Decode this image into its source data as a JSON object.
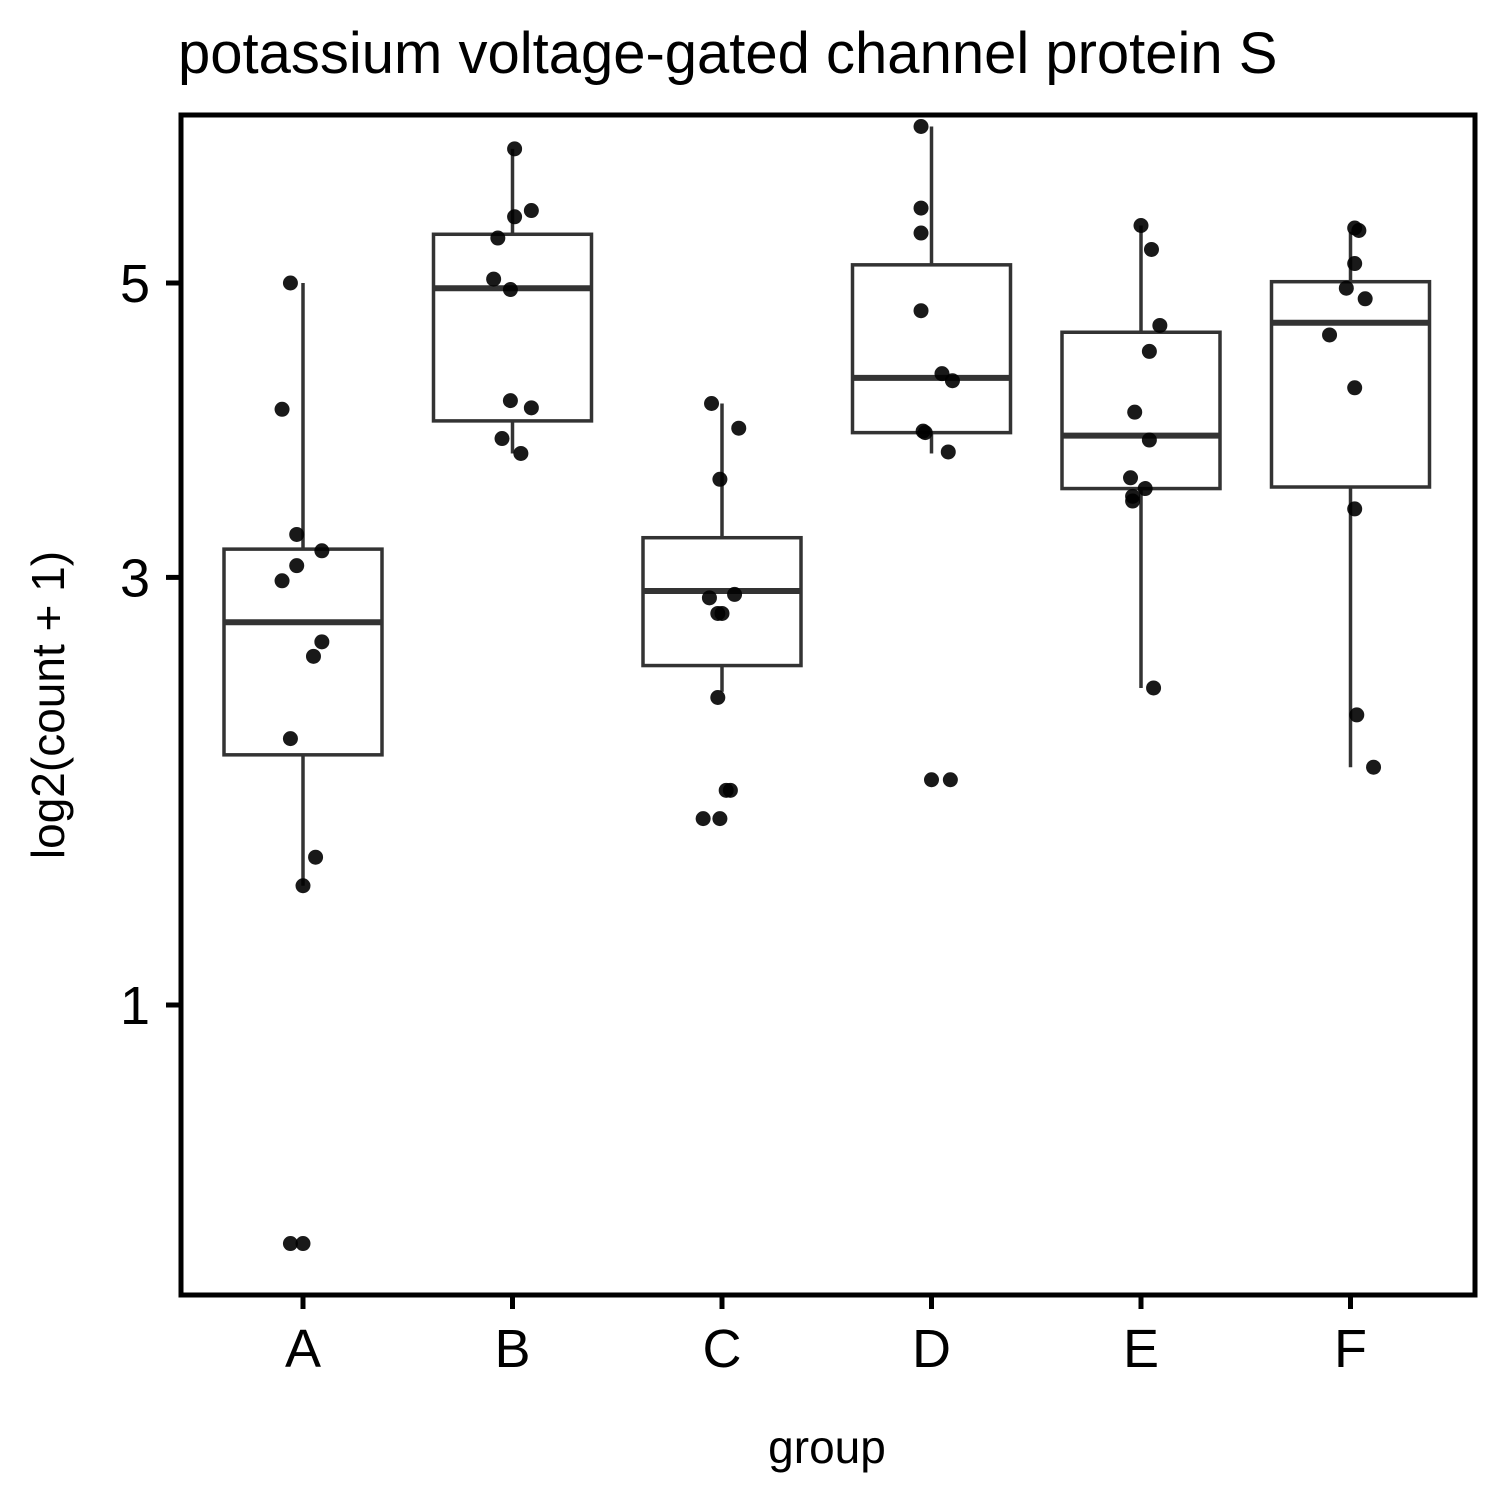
{
  "chart_data": {
    "type": "boxplot",
    "title": "potassium voltage-gated channel protein S",
    "xlabel": "group",
    "ylabel": "log2(count + 1)",
    "y_scale": "sqrt",
    "y_ticks": [
      1,
      3,
      5
    ],
    "ylim": [
      0.13,
      7.05
    ],
    "grid": false,
    "legend": "none",
    "colors": {
      "box_stroke": "#333333",
      "point": "#000000",
      "frame": "#000000"
    },
    "categories": [
      "A",
      "B",
      "C",
      "D",
      "E",
      "F"
    ],
    "boxes": [
      {
        "group": "A",
        "whisker_low": 1.45,
        "q1": 2.04,
        "median": 2.74,
        "q3": 3.17,
        "whisker_high": 5.0
      },
      {
        "group": "B",
        "whisker_low": 3.78,
        "q1": 4.0,
        "median": 4.96,
        "q3": 5.38,
        "whisker_high": 6.08
      },
      {
        "group": "C",
        "whisker_low": 2.36,
        "q1": 2.5,
        "median": 2.92,
        "q3": 3.24,
        "whisker_high": 4.12
      },
      {
        "group": "D",
        "whisker_low": 3.78,
        "q1": 3.92,
        "median": 4.3,
        "q3": 5.14,
        "whisker_high": 6.27
      },
      {
        "group": "E",
        "whisker_low": 2.38,
        "q1": 3.55,
        "median": 3.9,
        "q3": 4.63,
        "whisker_high": 5.45
      },
      {
        "group": "F",
        "whisker_low": 1.98,
        "q1": 3.56,
        "median": 4.7,
        "q3": 5.01,
        "whisker_high": 5.4
      }
    ],
    "points": [
      {
        "group": "A",
        "values": [
          5.0,
          4.08,
          3.26,
          3.16,
          3.07,
          2.98,
          2.63,
          2.55,
          2.12,
          1.57,
          1.45,
          0.35,
          0.35
        ],
        "offsets": [
          -0.06,
          -0.1,
          -0.03,
          0.09,
          -0.03,
          -0.1,
          0.09,
          0.05,
          -0.06,
          0.06,
          0.0,
          -0.06,
          0.0
        ]
      },
      {
        "group": "B",
        "values": [
          6.08,
          5.57,
          5.52,
          5.35,
          5.03,
          4.95,
          4.14,
          4.09,
          3.88,
          3.78
        ],
        "offsets": [
          0.01,
          0.09,
          0.01,
          -0.07,
          -0.09,
          -0.01,
          -0.01,
          0.09,
          -0.05,
          0.04
        ]
      },
      {
        "group": "C",
        "values": [
          4.12,
          3.95,
          3.61,
          2.9,
          2.88,
          2.79,
          2.79,
          2.33,
          1.87,
          1.87,
          1.74,
          1.74
        ],
        "offsets": [
          -0.05,
          0.08,
          -0.01,
          0.06,
          -0.06,
          -0.02,
          0.0,
          -0.02,
          0.02,
          0.04,
          -0.09,
          -0.01
        ]
      },
      {
        "group": "D",
        "values": [
          6.27,
          5.59,
          5.39,
          4.79,
          4.33,
          4.28,
          3.93,
          3.92,
          3.79,
          1.92,
          1.92
        ],
        "offsets": [
          -0.05,
          -0.05,
          -0.05,
          -0.05,
          0.05,
          0.1,
          -0.04,
          -0.03,
          0.08,
          0.0,
          0.09
        ]
      },
      {
        "group": "E",
        "values": [
          5.45,
          5.26,
          4.68,
          4.49,
          4.06,
          3.87,
          3.62,
          3.55,
          3.5,
          3.47,
          2.38
        ],
        "offsets": [
          0.0,
          0.05,
          0.09,
          0.04,
          -0.03,
          0.04,
          -0.05,
          0.02,
          -0.04,
          -0.04,
          0.06
        ]
      },
      {
        "group": "F",
        "values": [
          5.43,
          5.41,
          5.15,
          4.96,
          4.88,
          4.61,
          4.23,
          3.42,
          2.24,
          1.98
        ],
        "offsets": [
          0.02,
          0.04,
          0.02,
          -0.02,
          0.07,
          -0.1,
          0.02,
          0.02,
          0.03,
          0.11
        ]
      }
    ]
  }
}
